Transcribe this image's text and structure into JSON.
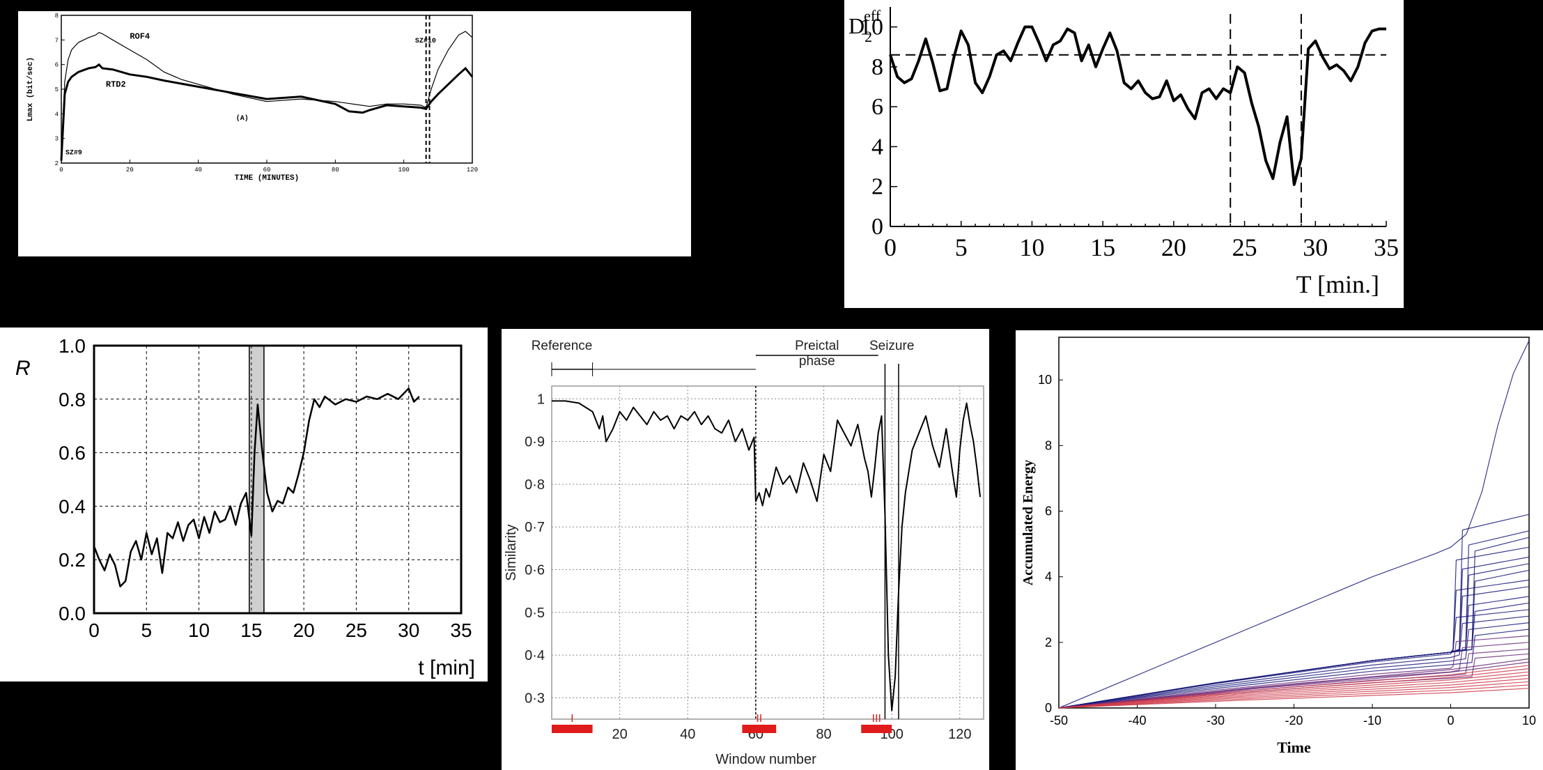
{
  "chart_data": [
    {
      "type": "line",
      "annotations": [
        "ROF4",
        "RTD2",
        "SZ#10",
        "(A)",
        "SZ#9"
      ],
      "xlabel": "TIME (MINUTES)",
      "ylabel": "Lmax (bit/sec)",
      "xlim": [
        0,
        120
      ],
      "ylim": [
        2,
        8
      ],
      "xticks": [
        0,
        20,
        40,
        60,
        80,
        100,
        120
      ],
      "yticks": [
        2,
        3,
        4,
        5,
        6,
        7,
        8
      ],
      "grid": false,
      "vlines": [
        106.5,
        107.5
      ],
      "series": [
        {
          "name": "ROF4",
          "x": [
            0,
            1,
            2,
            3,
            5,
            8,
            10,
            11,
            12,
            15,
            20,
            25,
            30,
            35,
            40,
            50,
            60,
            70,
            80,
            85,
            90,
            95,
            100,
            105,
            106.5,
            108,
            110,
            113,
            116,
            118,
            120
          ],
          "y": [
            2.1,
            5.3,
            6.2,
            6.6,
            6.9,
            7.1,
            7.2,
            7.3,
            7.25,
            7.0,
            6.6,
            6.2,
            5.7,
            5.4,
            5.2,
            4.8,
            4.5,
            4.6,
            4.5,
            4.4,
            4.3,
            4.4,
            4.4,
            4.35,
            4.25,
            5.0,
            5.8,
            6.6,
            7.2,
            7.35,
            7.1
          ]
        },
        {
          "name": "RTD2",
          "x": [
            0,
            1,
            2,
            3,
            5,
            8,
            10,
            11,
            12,
            15,
            20,
            25,
            30,
            40,
            50,
            60,
            70,
            80,
            84,
            88,
            90,
            95,
            100,
            105,
            106.5,
            108,
            110,
            113,
            116,
            118,
            120
          ],
          "y": [
            2.1,
            4.8,
            5.3,
            5.5,
            5.7,
            5.85,
            5.9,
            6.0,
            5.85,
            5.8,
            5.6,
            5.5,
            5.35,
            5.1,
            4.85,
            4.6,
            4.7,
            4.4,
            4.1,
            4.05,
            4.15,
            4.35,
            4.3,
            4.25,
            4.2,
            4.5,
            4.8,
            5.2,
            5.6,
            5.85,
            5.5
          ]
        }
      ]
    },
    {
      "type": "line",
      "ylabel": "D",
      "ylabel_sub": "2",
      "ylabel_sup": "eff",
      "xlabel": "T [min.]",
      "xlim": [
        0,
        35
      ],
      "ylim": [
        0,
        11
      ],
      "xticks": [
        0,
        5,
        10,
        15,
        20,
        25,
        30,
        35
      ],
      "yticks": [
        0,
        2,
        4,
        6,
        8,
        10
      ],
      "hline": 8.6,
      "vlines": [
        24,
        29
      ],
      "series": [
        {
          "x": [
            0,
            0.5,
            1,
            1.5,
            2,
            2.5,
            3,
            3.5,
            4,
            4.5,
            5,
            5.5,
            6,
            6.5,
            7,
            7.5,
            8,
            8.5,
            9,
            9.5,
            10,
            10.5,
            11,
            11.5,
            12,
            12.5,
            13,
            13.5,
            14,
            14.5,
            15,
            15.5,
            16,
            16.5,
            17,
            17.5,
            18,
            18.5,
            19,
            19.5,
            20,
            20.5,
            21,
            21.5,
            22,
            22.5,
            23,
            23.5,
            24,
            24.5,
            25,
            25.5,
            26,
            26.5,
            27,
            27.5,
            28,
            28.5,
            29,
            29.5,
            30,
            30.5,
            31,
            31.5,
            32,
            32.5,
            33,
            33.5,
            34,
            34.5,
            35
          ],
          "y": [
            8.6,
            7.5,
            7.2,
            7.4,
            8.3,
            9.4,
            8.2,
            6.8,
            6.9,
            8.5,
            9.8,
            9.1,
            7.2,
            6.7,
            7.5,
            8.6,
            8.8,
            8.3,
            9.2,
            10,
            10,
            9.2,
            8.3,
            9.1,
            9.3,
            9.9,
            9.7,
            8.3,
            9.1,
            8.0,
            8.9,
            9.7,
            8.8,
            7.2,
            6.9,
            7.3,
            6.7,
            6.4,
            6.5,
            7.3,
            6.3,
            6.6,
            5.9,
            5.4,
            6.7,
            6.9,
            6.4,
            6.9,
            6.7,
            8.0,
            7.7,
            6.2,
            5.0,
            3.3,
            2.4,
            4.2,
            5.5,
            2.1,
            3.4,
            8.9,
            9.3,
            8.5,
            7.9,
            8.1,
            7.8,
            7.3,
            8.0,
            9.2,
            9.8,
            9.9,
            9.9
          ]
        }
      ]
    },
    {
      "type": "line",
      "ylabel": "R",
      "xlabel": "t [min]",
      "xlim": [
        0,
        35
      ],
      "ylim": [
        0,
        1
      ],
      "xticks": [
        0,
        5,
        10,
        15,
        20,
        25,
        30,
        35
      ],
      "yticks": [
        0.0,
        0.2,
        0.4,
        0.6,
        0.8,
        1.0
      ],
      "ytick_labels": [
        "0.0",
        "0.2",
        "0.4",
        "0.6",
        "0.8",
        "1.0"
      ],
      "grid": true,
      "shaded_x": [
        14.8,
        16.2
      ],
      "series": [
        {
          "x": [
            0,
            0.5,
            1,
            1.5,
            2,
            2.5,
            3,
            3.5,
            4,
            4.5,
            5,
            5.5,
            6,
            6.5,
            7,
            7.5,
            8,
            8.5,
            9,
            9.5,
            10,
            10.5,
            11,
            11.5,
            12,
            12.5,
            13,
            13.5,
            14,
            14.5,
            15,
            15.3,
            15.6,
            16,
            16.5,
            17,
            17.5,
            18,
            18.5,
            19,
            19.5,
            20,
            20.5,
            21,
            21.5,
            22,
            23,
            24,
            25,
            26,
            27,
            28,
            29,
            30,
            30.5,
            31
          ],
          "y": [
            0.25,
            0.2,
            0.16,
            0.22,
            0.18,
            0.1,
            0.12,
            0.23,
            0.27,
            0.2,
            0.3,
            0.22,
            0.28,
            0.15,
            0.3,
            0.28,
            0.34,
            0.27,
            0.33,
            0.35,
            0.28,
            0.36,
            0.3,
            0.38,
            0.34,
            0.35,
            0.4,
            0.33,
            0.41,
            0.45,
            0.29,
            0.6,
            0.78,
            0.62,
            0.45,
            0.38,
            0.42,
            0.41,
            0.47,
            0.45,
            0.52,
            0.6,
            0.72,
            0.8,
            0.77,
            0.81,
            0.78,
            0.8,
            0.79,
            0.81,
            0.8,
            0.82,
            0.8,
            0.84,
            0.79,
            0.81
          ]
        }
      ]
    },
    {
      "type": "line",
      "ylabel": "Similarity",
      "xlabel": "Window number",
      "xlim": [
        0,
        127
      ],
      "ylim": [
        0.25,
        1.03
      ],
      "xticks": [
        20,
        40,
        60,
        80,
        100,
        120
      ],
      "yticks": [
        0.3,
        0.4,
        0.5,
        0.6,
        0.7,
        0.8,
        0.9,
        1.0
      ],
      "ytick_labels": [
        "0·3",
        "0·4",
        "0·5",
        "0·6",
        "0·7",
        "0·8",
        "0·9",
        "1"
      ],
      "grid": true,
      "annotations": [
        "Reference",
        "Preictal phase",
        "Seizure"
      ],
      "phases": [
        {
          "label": "I",
          "x": [
            0,
            12
          ]
        },
        {
          "label": "II",
          "x": [
            56,
            66
          ]
        },
        {
          "label": "III",
          "x": [
            91,
            100
          ]
        }
      ],
      "vlines": [
        60,
        98,
        102
      ],
      "series": [
        {
          "x": [
            0,
            4,
            8,
            10,
            12,
            13,
            14,
            15,
            16,
            18,
            20,
            22,
            24,
            26,
            28,
            30,
            32,
            34,
            36,
            38,
            40,
            42,
            44,
            46,
            48,
            50,
            52,
            54,
            56,
            58,
            59.5,
            60,
            61,
            62,
            63,
            64,
            66,
            68,
            70,
            72,
            74,
            76,
            78,
            80,
            82,
            84,
            86,
            88,
            90,
            92,
            93,
            94,
            95,
            96,
            97,
            98,
            99,
            100,
            101,
            102,
            103,
            104,
            105,
            106,
            108,
            110,
            112,
            114,
            116,
            118,
            119,
            120,
            121,
            122,
            123,
            124,
            125,
            126
          ],
          "y": [
            0.995,
            0.995,
            0.99,
            0.98,
            0.97,
            0.95,
            0.93,
            0.96,
            0.9,
            0.93,
            0.97,
            0.95,
            0.98,
            0.96,
            0.94,
            0.97,
            0.95,
            0.96,
            0.93,
            0.96,
            0.95,
            0.97,
            0.94,
            0.96,
            0.93,
            0.92,
            0.95,
            0.9,
            0.93,
            0.88,
            0.91,
            0.76,
            0.78,
            0.75,
            0.79,
            0.77,
            0.84,
            0.8,
            0.82,
            0.78,
            0.85,
            0.81,
            0.76,
            0.87,
            0.83,
            0.95,
            0.92,
            0.89,
            0.94,
            0.86,
            0.83,
            0.77,
            0.84,
            0.92,
            0.96,
            0.73,
            0.4,
            0.27,
            0.35,
            0.55,
            0.7,
            0.78,
            0.83,
            0.88,
            0.92,
            0.96,
            0.89,
            0.84,
            0.93,
            0.82,
            0.77,
            0.88,
            0.95,
            0.99,
            0.94,
            0.9,
            0.84,
            0.77
          ]
        }
      ]
    },
    {
      "type": "line",
      "ylabel": "Accumulated Energy",
      "xlabel": "Time",
      "xlim": [
        -50,
        10
      ],
      "ylim": [
        0,
        11.3
      ],
      "xticks": [
        -50,
        -40,
        -30,
        -20,
        -10,
        0,
        10
      ],
      "yticks": [
        0,
        2,
        4,
        6,
        8,
        10
      ],
      "colors": {
        "blue": "#1a1a7a",
        "purple": "#6a2a7a",
        "red": "#cc3a4a"
      },
      "series_endpoints": [
        11.2,
        5.9,
        5.4,
        5.2,
        4.9,
        4.6,
        4.4,
        4.2,
        3.9,
        3.7,
        3.4,
        3.2,
        3.0,
        2.8,
        2.6,
        2.4,
        2.2,
        2.0,
        1.8,
        1.65,
        1.5,
        1.4,
        1.3,
        1.2,
        1.1,
        1.0,
        0.9,
        0.8,
        0.7,
        0.6
      ]
    }
  ]
}
